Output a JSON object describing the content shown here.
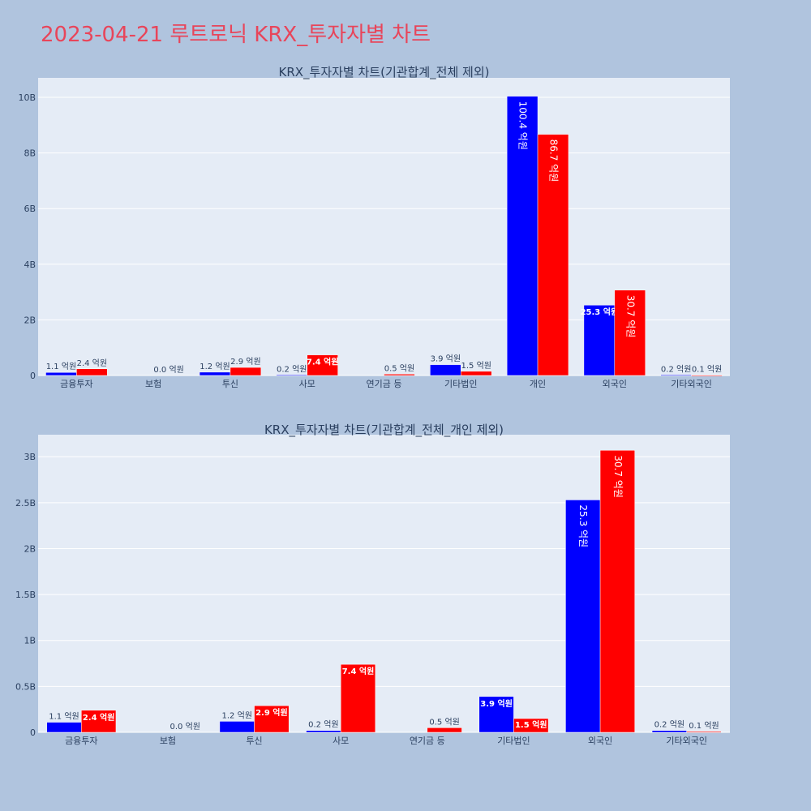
{
  "page_title": "2023-04-21 루트로닉 KRX_투자자별 차트",
  "colors": {
    "series_1": "#0000ff",
    "series_2": "#ff0000",
    "plot_bg": "#e5ecf6",
    "page_bg": "#b0c4de",
    "title": "#e8455a"
  },
  "chart_data": [
    {
      "type": "bar",
      "title": "KRX_투자자별 차트(기관합계_전체 제외)",
      "categories": [
        "금융투자",
        "보험",
        "투신",
        "사모",
        "연기금 등",
        "기타법인",
        "개인",
        "외국인",
        "기타외국인"
      ],
      "ylim": [
        0,
        10700000000
      ],
      "y_ticks": [
        0,
        2000000000,
        4000000000,
        6000000000,
        8000000000,
        10000000000
      ],
      "y_tick_labels": [
        "0",
        "2B",
        "4B",
        "6B",
        "8B",
        "10B"
      ],
      "grid": true,
      "series": [
        {
          "values": [
            110000000,
            0,
            120000000,
            20000000,
            0,
            390000000,
            10040000000,
            2530000000,
            20000000
          ],
          "labels": [
            "1.1 억원",
            "",
            "1.2 억원",
            "0.2 억원",
            "",
            "3.9 억원",
            "100.4 억원",
            "25.3 억원",
            "0.2 억원"
          ]
        },
        {
          "values": [
            240000000,
            0,
            290000000,
            740000000,
            50000000,
            150000000,
            8670000000,
            3070000000,
            10000000
          ],
          "labels": [
            "2.4 억원",
            "0.0 억원",
            "2.9 억원",
            "7.4 억원",
            "0.5 억원",
            "1.5 억원",
            "86.7 억원",
            "30.7 억원",
            "0.1 억원"
          ]
        }
      ]
    },
    {
      "type": "bar",
      "title": "KRX_투자자별 차트(기관합계_전체_개인 제외)",
      "categories": [
        "금융투자",
        "보험",
        "투신",
        "사모",
        "연기금 등",
        "기타법인",
        "외국인",
        "기타외국인"
      ],
      "ylim": [
        0,
        3240000000
      ],
      "y_ticks": [
        0,
        500000000,
        1000000000,
        1500000000,
        2000000000,
        2500000000,
        3000000000
      ],
      "y_tick_labels": [
        "0",
        "0.5B",
        "1B",
        "1.5B",
        "2B",
        "2.5B",
        "3B"
      ],
      "grid": true,
      "series": [
        {
          "values": [
            110000000,
            0,
            120000000,
            20000000,
            0,
            390000000,
            2530000000,
            20000000
          ],
          "labels": [
            "1.1 억원",
            "",
            "1.2 억원",
            "0.2 억원",
            "",
            "3.9 억원",
            "25.3 억원",
            "0.2 억원"
          ]
        },
        {
          "values": [
            240000000,
            0,
            290000000,
            740000000,
            50000000,
            150000000,
            3070000000,
            10000000
          ],
          "labels": [
            "2.4 억원",
            "0.0 억원",
            "2.9 억원",
            "7.4 억원",
            "0.5 억원",
            "1.5 억원",
            "30.7 억원",
            "0.1 억원"
          ]
        }
      ]
    }
  ]
}
